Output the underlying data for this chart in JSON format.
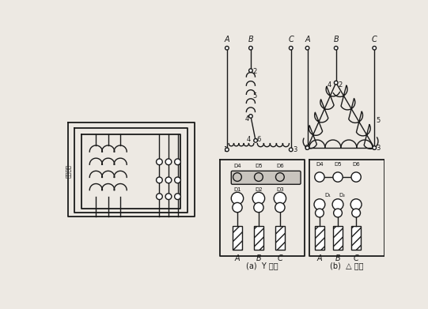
{
  "bg_color": "#ede9e3",
  "line_color": "#1a1a1a",
  "fig_width": 5.41,
  "fig_height": 3.91,
  "dpi": 100,
  "labels": {
    "Y_label": "(a)  Y 接法",
    "delta_label": "(b)  △ 接法",
    "stator_label": "定子绕组"
  }
}
